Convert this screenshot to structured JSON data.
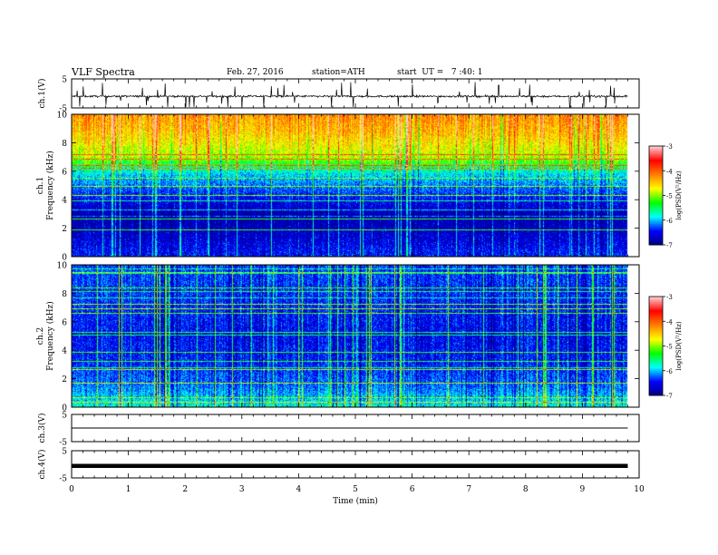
{
  "header": {
    "title": "VLF Spectra",
    "date": "Feb. 27, 2016",
    "station": "station=ATH",
    "start": "start  UT =   7 :40: 1"
  },
  "colors": {
    "colormap": [
      "#000080",
      "#0000ff",
      "#00ffff",
      "#00ff00",
      "#ffff00",
      "#ff7f00",
      "#ff0000",
      "#ffd0d0"
    ]
  },
  "chart_data": [
    {
      "type": "line",
      "panel": "ch1-waveform",
      "ylabel": "ch.1(V)",
      "ylim": [
        -5,
        5
      ],
      "yticks": [
        "5",
        "-5"
      ],
      "xlim": [
        0,
        10
      ],
      "mean_level_v": -1.0,
      "noise_amplitude_v": 1.0
    },
    {
      "type": "heatmap",
      "panel": "ch1-spectrogram",
      "ylabel": [
        "ch.1",
        "Frequency  (kHz)"
      ],
      "ylim": [
        0,
        10
      ],
      "yticks": [
        "0",
        "2",
        "4",
        "6",
        "8",
        "10"
      ],
      "xlim": [
        0,
        10
      ],
      "color_range": [
        -7,
        -3
      ],
      "colorbar_ticks": [
        "-3",
        "-4",
        "-5",
        "-6",
        "-7"
      ],
      "colorbar_label": "log(PSD(V²/Hz)",
      "band_levels_khz": [
        [
          0,
          -6.4
        ],
        [
          1.2,
          -6.6
        ],
        [
          2.9,
          -6.8
        ],
        [
          5.8,
          -5.9
        ],
        [
          7.0,
          -4.9
        ],
        [
          8.8,
          -4.4
        ],
        [
          10,
          -4.2
        ]
      ]
    },
    {
      "type": "heatmap",
      "panel": "ch2-spectrogram",
      "ylabel": [
        "ch.2",
        "Frequency  (kHz)"
      ],
      "ylim": [
        0,
        10
      ],
      "yticks": [
        "0",
        "2",
        "4",
        "6",
        "8",
        "10"
      ],
      "xlim": [
        0,
        10
      ],
      "color_range": [
        -7,
        -3
      ],
      "colorbar_ticks": [
        "-3",
        "-4",
        "-5",
        "-6",
        "-7"
      ],
      "colorbar_label": "log(PSD(V²/Hz)",
      "band_levels_khz": [
        [
          0,
          -5.8
        ],
        [
          1.5,
          -6.2
        ],
        [
          3.0,
          -6.4
        ],
        [
          5.0,
          -6.5
        ],
        [
          7.0,
          -6.4
        ],
        [
          10,
          -6.3
        ]
      ]
    },
    {
      "type": "line",
      "panel": "ch3-waveform",
      "ylabel": "ch.3(V)",
      "ylim": [
        -5,
        5
      ],
      "yticks": [
        "5",
        "-5"
      ],
      "xlim": [
        0,
        10
      ],
      "mean_level_v": 0
    },
    {
      "type": "line",
      "panel": "ch4-waveform",
      "ylabel": "ch.4(V)",
      "ylim": [
        -5,
        5
      ],
      "yticks": [
        "5",
        "-5"
      ],
      "xlim": [
        0,
        10
      ],
      "mean_level_v": -0.6,
      "xlabel": "Time  (min)",
      "xticks": [
        "0",
        "1",
        "2",
        "3",
        "4",
        "5",
        "6",
        "7",
        "8",
        "9",
        "10"
      ]
    }
  ],
  "data_end_min": 9.8
}
